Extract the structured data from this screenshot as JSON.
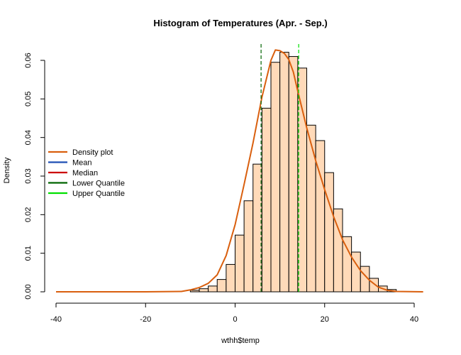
{
  "chart_data": {
    "type": "bar",
    "title": "Histogram of Temperatures (Apr. - Sep.)",
    "xlabel": "wthh$temp",
    "ylabel": "Density",
    "xlim": [
      -40,
      42
    ],
    "ylim": [
      0,
      0.063
    ],
    "x_ticks": [
      -40,
      -20,
      0,
      20,
      40
    ],
    "y_ticks": [
      0.0,
      0.01,
      0.02,
      0.03,
      0.04,
      0.05,
      0.06
    ],
    "y_tick_labels": [
      "0.00",
      "0.01",
      "0.02",
      "0.03",
      "0.04",
      "0.05",
      "0.06"
    ],
    "bin_width": 2,
    "bins": [
      {
        "x0": -10,
        "density": 0.0004
      },
      {
        "x0": -8,
        "density": 0.0008
      },
      {
        "x0": -6,
        "density": 0.0015
      },
      {
        "x0": -4,
        "density": 0.0032
      },
      {
        "x0": -2,
        "density": 0.0071
      },
      {
        "x0": 0,
        "density": 0.0147
      },
      {
        "x0": 2,
        "density": 0.0236
      },
      {
        "x0": 4,
        "density": 0.0331
      },
      {
        "x0": 6,
        "density": 0.0476
      },
      {
        "x0": 8,
        "density": 0.0595
      },
      {
        "x0": 10,
        "density": 0.0621
      },
      {
        "x0": 12,
        "density": 0.061
      },
      {
        "x0": 14,
        "density": 0.058
      },
      {
        "x0": 16,
        "density": 0.0432
      },
      {
        "x0": 18,
        "density": 0.0392
      },
      {
        "x0": 20,
        "density": 0.0309
      },
      {
        "x0": 22,
        "density": 0.0215
      },
      {
        "x0": 24,
        "density": 0.0143
      },
      {
        "x0": 26,
        "density": 0.0103
      },
      {
        "x0": 28,
        "density": 0.0066
      },
      {
        "x0": 30,
        "density": 0.0035
      },
      {
        "x0": 32,
        "density": 0.0015
      },
      {
        "x0": 34,
        "density": 0.0006
      }
    ],
    "density_curve": {
      "name": "Density plot",
      "x": [
        -40,
        -20,
        -12,
        -10,
        -8,
        -6,
        -4,
        -2,
        0,
        2,
        4,
        6,
        8,
        9,
        10,
        11,
        12,
        13,
        14,
        16,
        18,
        20,
        22,
        24,
        26,
        28,
        30,
        32,
        34,
        36,
        42
      ],
      "y": [
        0,
        0,
        0.0001,
        0.0005,
        0.0011,
        0.0022,
        0.0044,
        0.0094,
        0.0174,
        0.0278,
        0.0386,
        0.0505,
        0.06,
        0.0627,
        0.0625,
        0.0618,
        0.0602,
        0.057,
        0.052,
        0.0425,
        0.034,
        0.0265,
        0.0195,
        0.0135,
        0.009,
        0.0055,
        0.003,
        0.0012,
        0.0004,
        0.0001,
        0
      ]
    },
    "vlines": [
      {
        "name": "Lower Quantile",
        "x": 5.8
      },
      {
        "name": "Upper Quantile",
        "x": 14.2
      }
    ],
    "legend": {
      "placement": "left",
      "entries": [
        {
          "name": "Density plot",
          "color": "#D95F0E"
        },
        {
          "name": "Mean",
          "color": "#1F4FB4"
        },
        {
          "name": "Median",
          "color": "#CC0000"
        },
        {
          "name": "Lower Quantile",
          "color": "#006400"
        },
        {
          "name": "Upper Quantile",
          "color": "#00E000"
        }
      ]
    },
    "colors": {
      "bar_fill": "#FFDAB9",
      "bar_stroke": "#000000",
      "density": "#D95F0E",
      "lower_quantile": "#006400",
      "upper_quantile": "#00E000"
    },
    "grid": false
  }
}
